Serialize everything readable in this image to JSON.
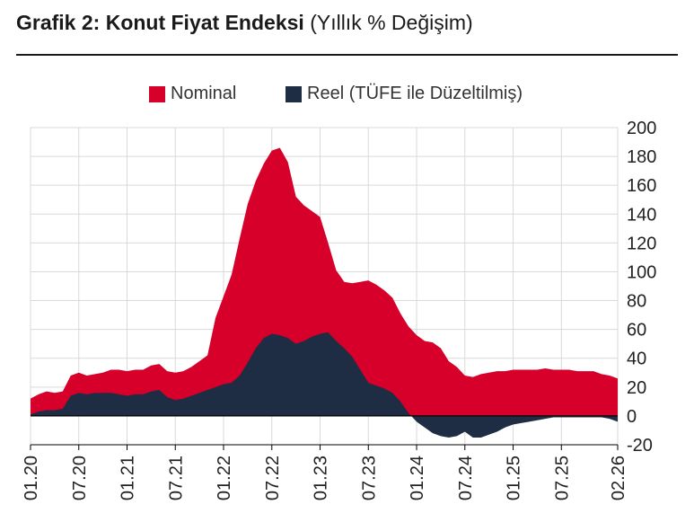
{
  "header": {
    "title_bold": "Grafik 2: Konut Fiyat Endeksi",
    "title_light": "(Yıllık % Değişim)"
  },
  "colors": {
    "nominal": "#d6002a",
    "real": "#1f2d44",
    "grid": "#d9d9d9",
    "axis": "#000000",
    "text": "#222222"
  },
  "chart_data": {
    "type": "area",
    "title": "Grafik 2: Konut Fiyat Endeksi (Yıllık % Değişim)",
    "xlabel": "",
    "ylabel": "",
    "ylim": [
      -20,
      200
    ],
    "yticks": [
      -20,
      0,
      20,
      40,
      60,
      80,
      100,
      120,
      140,
      160,
      180,
      200
    ],
    "ytick_labels": [
      "-20",
      "0",
      "20",
      "40",
      "60",
      "80",
      "100",
      "120",
      "140",
      "160",
      "180",
      "200"
    ],
    "y_axis_side": "right",
    "grid": true,
    "legend_position": "top",
    "x_start": "2020-01",
    "x_end": "2026-02",
    "xtick_labels": [
      "01.20",
      "07.20",
      "01.21",
      "07.21",
      "01.22",
      "07.22",
      "01.23",
      "07.23",
      "01.24",
      "07.24",
      "01.25",
      "07.25",
      "02.26"
    ],
    "xtick_month_index": [
      0,
      6,
      12,
      18,
      24,
      30,
      36,
      42,
      48,
      54,
      60,
      66,
      73
    ],
    "series": [
      {
        "name": "Nominal",
        "color": "#d6002a",
        "values": [
          12,
          15,
          17,
          16,
          17,
          28,
          30,
          28,
          29,
          30,
          32,
          32,
          31,
          32,
          32,
          35,
          36,
          31,
          30,
          31,
          34,
          38,
          42,
          68,
          83,
          98,
          123,
          147,
          163,
          175,
          184,
          186,
          176,
          152,
          146,
          142,
          138,
          120,
          101,
          93,
          92,
          93,
          94,
          91,
          87,
          82,
          71,
          62,
          56,
          52,
          51,
          47,
          38,
          34,
          28,
          27,
          29,
          30,
          31,
          31,
          32,
          32,
          32,
          32,
          33,
          32,
          32,
          32,
          31,
          31,
          31,
          29,
          28,
          26
        ]
      },
      {
        "name": "Reel (TÜFE ile Düzeltilmiş)",
        "color": "#1f2d44",
        "values": [
          1,
          3,
          4,
          4,
          5,
          14,
          16,
          15,
          16,
          16,
          16,
          15,
          14,
          15,
          15,
          17,
          18,
          13,
          11,
          12,
          14,
          16,
          18,
          20,
          22,
          23,
          28,
          37,
          47,
          54,
          57,
          56,
          54,
          50,
          52,
          55,
          57,
          58,
          52,
          47,
          41,
          32,
          23,
          21,
          19,
          16,
          10,
          2,
          -4,
          -8,
          -12,
          -14,
          -15,
          -14,
          -11,
          -15,
          -15,
          -13,
          -11,
          -8,
          -6,
          -5,
          -4,
          -3,
          -2,
          -1,
          -1,
          -1,
          -1,
          -1,
          -1,
          -1,
          -2,
          -4
        ]
      }
    ]
  }
}
